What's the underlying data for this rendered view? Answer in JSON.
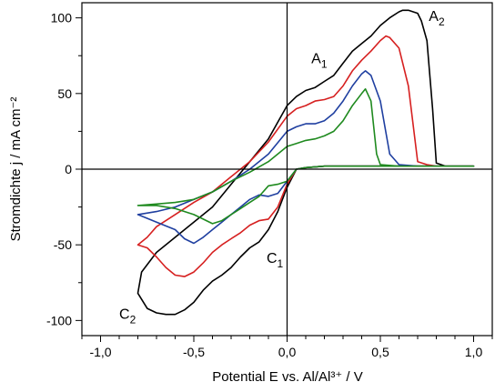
{
  "chart_data": {
    "type": "line",
    "title": "",
    "xlabel": "Potential E vs. Al/Al³⁺  /  V",
    "ylabel": "Stromdichte j  /  mA cm⁻²",
    "xlim": [
      -1.1,
      1.1
    ],
    "ylim": [
      -110,
      110
    ],
    "x_ticks": [
      -1.0,
      -0.5,
      0.0,
      0.5,
      1.0
    ],
    "x_tick_labels": [
      "-1,0",
      "-0,5",
      "0,0",
      "0,5",
      "1,0"
    ],
    "y_ticks": [
      -100,
      -50,
      0,
      50,
      100
    ],
    "y_tick_labels": [
      "-100",
      "-50",
      "0",
      "50",
      "100"
    ],
    "grid": false,
    "legend": "none",
    "zero_lines": true,
    "annotations": [
      {
        "main": "A",
        "sub": "1",
        "x": 0.13,
        "y": 70
      },
      {
        "main": "A",
        "sub": "2",
        "x": 0.76,
        "y": 98
      },
      {
        "main": "C",
        "sub": "1",
        "x": -0.11,
        "y": -62
      },
      {
        "main": "C",
        "sub": "2",
        "x": -0.9,
        "y": -99
      }
    ],
    "series": [
      {
        "color": "#000000",
        "x": [
          0.0,
          0.05,
          0.1,
          0.15,
          0.2,
          0.25,
          0.3,
          0.35,
          0.4,
          0.45,
          0.5,
          0.55,
          0.6,
          0.62,
          0.65,
          0.7,
          0.72,
          0.75,
          0.78,
          0.8,
          0.85,
          0.9,
          0.95,
          1.0,
          0.9,
          0.8,
          0.7,
          0.6,
          0.5,
          0.4,
          0.3,
          0.2,
          0.1,
          0.05,
          0.0,
          -0.05,
          -0.1,
          -0.15,
          -0.2,
          -0.25,
          -0.3,
          -0.35,
          -0.4,
          -0.45,
          -0.5,
          -0.55,
          -0.6,
          -0.65,
          -0.7,
          -0.75,
          -0.8,
          -0.78,
          -0.7,
          -0.6,
          -0.5,
          -0.4,
          -0.3,
          -0.2,
          -0.1,
          0.0
        ],
        "y": [
          42,
          48,
          52,
          54,
          58,
          62,
          70,
          78,
          83,
          88,
          95,
          100,
          104,
          105,
          105,
          103,
          98,
          85,
          40,
          4,
          2,
          2,
          2,
          2,
          2,
          2,
          2,
          2,
          2,
          2,
          2,
          2,
          1,
          0,
          -12,
          -28,
          -40,
          -48,
          -52,
          -58,
          -65,
          -70,
          -74,
          -80,
          -88,
          -93,
          -96,
          -96,
          -95,
          -92,
          -82,
          -68,
          -55,
          -45,
          -35,
          -25,
          -10,
          5,
          20,
          42
        ]
      },
      {
        "color": "#d62020",
        "x": [
          0.0,
          0.05,
          0.1,
          0.15,
          0.2,
          0.25,
          0.3,
          0.35,
          0.4,
          0.45,
          0.5,
          0.53,
          0.55,
          0.6,
          0.65,
          0.7,
          0.75,
          0.8,
          0.9,
          1.0,
          0.9,
          0.8,
          0.7,
          0.6,
          0.5,
          0.4,
          0.3,
          0.2,
          0.1,
          0.05,
          0.0,
          -0.05,
          -0.1,
          -0.15,
          -0.2,
          -0.25,
          -0.3,
          -0.35,
          -0.4,
          -0.45,
          -0.5,
          -0.55,
          -0.6,
          -0.65,
          -0.7,
          -0.75,
          -0.8,
          -0.75,
          -0.7,
          -0.6,
          -0.5,
          -0.4,
          -0.3,
          -0.2,
          -0.1,
          0.0
        ],
        "y": [
          35,
          40,
          42,
          45,
          46,
          48,
          55,
          65,
          72,
          78,
          85,
          88,
          87,
          80,
          55,
          5,
          3,
          2,
          2,
          2,
          2,
          2,
          2,
          2,
          2,
          2,
          2,
          2,
          1,
          0,
          -10,
          -25,
          -33,
          -34,
          -37,
          -42,
          -46,
          -50,
          -55,
          -62,
          -68,
          -71,
          -70,
          -65,
          -58,
          -52,
          -50,
          -45,
          -38,
          -30,
          -22,
          -15,
          -5,
          5,
          18,
          35
        ]
      },
      {
        "color": "#1f3fa0",
        "x": [
          0.0,
          0.05,
          0.1,
          0.15,
          0.2,
          0.25,
          0.3,
          0.35,
          0.4,
          0.42,
          0.45,
          0.5,
          0.55,
          0.6,
          0.7,
          0.8,
          0.9,
          1.0,
          0.9,
          0.8,
          0.7,
          0.6,
          0.5,
          0.4,
          0.3,
          0.2,
          0.1,
          0.05,
          0.0,
          -0.05,
          -0.1,
          -0.15,
          -0.2,
          -0.25,
          -0.3,
          -0.35,
          -0.4,
          -0.45,
          -0.5,
          -0.55,
          -0.6,
          -0.7,
          -0.8,
          -0.7,
          -0.6,
          -0.5,
          -0.4,
          -0.3,
          -0.2,
          -0.1,
          0.0
        ],
        "y": [
          25,
          28,
          30,
          30,
          32,
          37,
          45,
          55,
          63,
          65,
          62,
          45,
          10,
          3,
          2,
          2,
          2,
          2,
          2,
          2,
          2,
          2,
          2,
          2,
          2,
          2,
          1,
          0,
          -8,
          -16,
          -18,
          -17,
          -20,
          -25,
          -30,
          -35,
          -40,
          -45,
          -49,
          -46,
          -40,
          -35,
          -30,
          -28,
          -25,
          -20,
          -15,
          -8,
          0,
          10,
          25
        ]
      },
      {
        "color": "#1f8a1f",
        "x": [
          0.0,
          0.05,
          0.1,
          0.15,
          0.2,
          0.25,
          0.3,
          0.35,
          0.4,
          0.42,
          0.45,
          0.48,
          0.5,
          0.6,
          0.7,
          0.8,
          0.9,
          1.0,
          0.9,
          0.8,
          0.7,
          0.6,
          0.5,
          0.4,
          0.3,
          0.2,
          0.1,
          0.05,
          0.0,
          -0.05,
          -0.1,
          -0.15,
          -0.2,
          -0.25,
          -0.3,
          -0.35,
          -0.4,
          -0.45,
          -0.5,
          -0.6,
          -0.7,
          -0.8,
          -0.7,
          -0.6,
          -0.5,
          -0.4,
          -0.3,
          -0.2,
          -0.1,
          0.0
        ],
        "y": [
          15,
          17,
          19,
          20,
          22,
          25,
          32,
          42,
          50,
          53,
          45,
          10,
          3,
          2,
          2,
          2,
          2,
          2,
          2,
          2,
          2,
          2,
          2,
          2,
          2,
          2,
          1,
          0,
          -8,
          -10,
          -11,
          -18,
          -22,
          -26,
          -30,
          -34,
          -36,
          -33,
          -30,
          -26,
          -24,
          -24,
          -23,
          -22,
          -20,
          -15,
          -8,
          -2,
          5,
          15
        ]
      }
    ]
  }
}
